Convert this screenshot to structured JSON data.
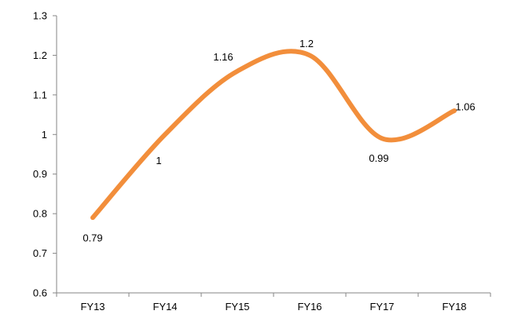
{
  "chart_data": {
    "type": "line",
    "categories": [
      "FY13",
      "FY14",
      "FY15",
      "FY16",
      "FY17",
      "FY18"
    ],
    "values": [
      0.79,
      1,
      1.16,
      1.2,
      0.99,
      1.06
    ],
    "data_labels": [
      "0.79",
      "1",
      "1.16",
      "1.2",
      "0.99",
      "1.06"
    ],
    "yticks": [
      "0.6",
      "0.7",
      "0.8",
      "0.9",
      "1",
      "1.1",
      "1.2",
      "1.3"
    ],
    "ylim": [
      0.6,
      1.3
    ],
    "smooth": true,
    "grid": false,
    "legend": "none",
    "line_color": "#F28E3B"
  }
}
